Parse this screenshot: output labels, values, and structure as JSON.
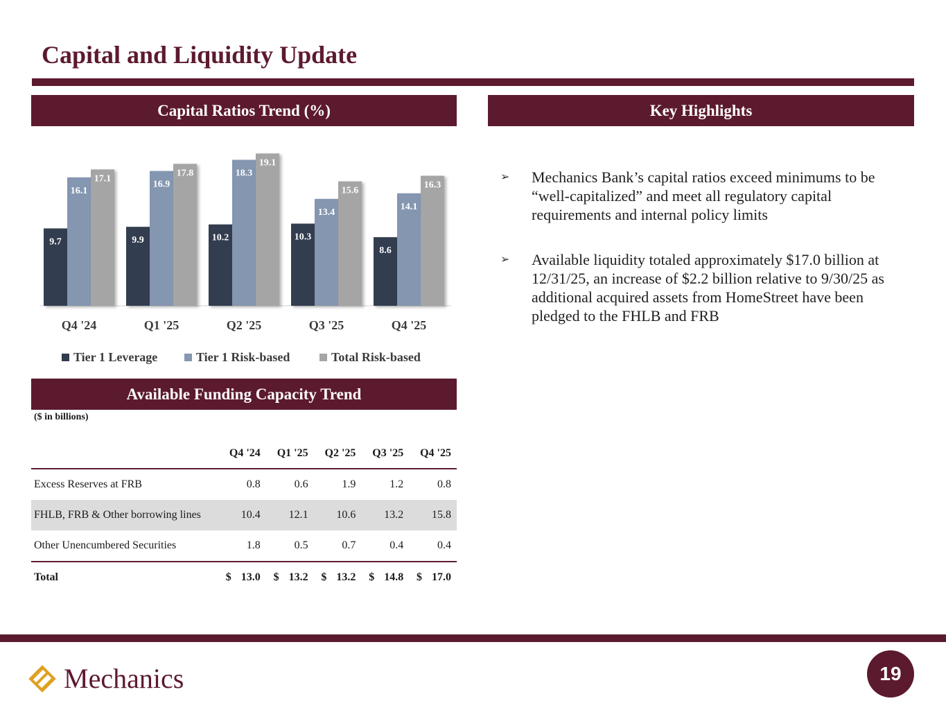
{
  "page": {
    "title": "Capital and Liquidity Update",
    "page_number": "19",
    "logo_text": "Mechanics"
  },
  "colors": {
    "brand": "#5c1a2e",
    "tier1_leverage": "#323c4f",
    "tier1_risk": "#8496b0",
    "total_risk": "#a5a5a5"
  },
  "sections": {
    "capital": "Capital Ratios Trend (%)",
    "highlights": "Key Highlights",
    "funding": "Available Funding Capacity Trend"
  },
  "chart_data": {
    "type": "bar",
    "title": "Capital Ratios Trend (%)",
    "categories": [
      "Q4 '24",
      "Q1 '25",
      "Q2 '25",
      "Q3 '25",
      "Q4 '25"
    ],
    "series": [
      {
        "name": "Tier 1 Leverage",
        "values": [
          9.7,
          9.9,
          10.2,
          10.3,
          8.6
        ]
      },
      {
        "name": "Tier 1 Risk-based",
        "values": [
          16.1,
          16.9,
          18.3,
          13.4,
          14.1
        ]
      },
      {
        "name": "Total Risk-based",
        "values": [
          17.1,
          17.8,
          19.1,
          15.6,
          16.3
        ]
      }
    ],
    "ylim": [
      0,
      20
    ],
    "grid": false,
    "legend": "bottom",
    "xlabel": "",
    "ylabel": ""
  },
  "highlights": [
    "Mechanics Bank’s capital ratios exceed minimums to be “well-capitalized” and meet all regulatory capital requirements and internal policy limits",
    "Available liquidity totaled approximately $17.0 billion at 12/31/25, an increase of $2.2 billion relative to 9/30/25 as additional acquired assets from HomeStreet have been pledged to the FHLB and FRB"
  ],
  "funding": {
    "units": "($ in billions)",
    "columns": [
      "Q4 '24",
      "Q1 '25",
      "Q2 '25",
      "Q3 '25",
      "Q4 '25"
    ],
    "rows": [
      {
        "label": "Excess Reserves at FRB",
        "values": [
          "0.8",
          "0.6",
          "1.9",
          "1.2",
          "0.8"
        ]
      },
      {
        "label": "FHLB, FRB & Other borrowing lines",
        "values": [
          "10.4",
          "12.1",
          "10.6",
          "13.2",
          "15.8"
        ]
      },
      {
        "label": "Other Unencumbered Securities",
        "values": [
          "1.8",
          "0.5",
          "0.7",
          "0.4",
          "0.4"
        ]
      }
    ],
    "total": {
      "label": "Total",
      "currency": "$",
      "values": [
        "13.0",
        "13.2",
        "13.2",
        "14.8",
        "17.0"
      ]
    }
  }
}
